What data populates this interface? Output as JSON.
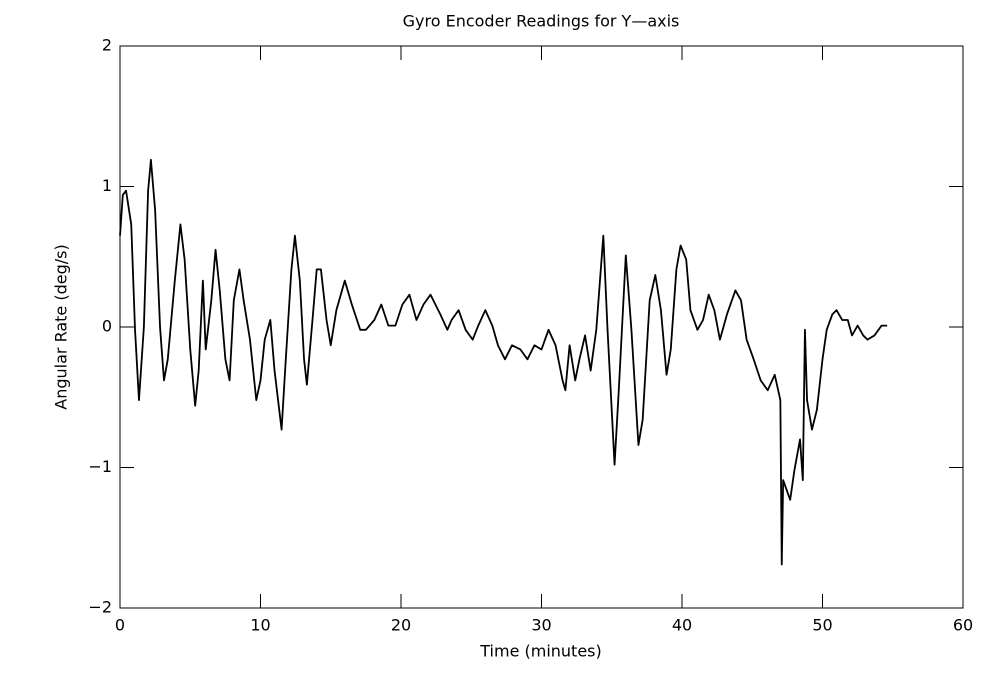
{
  "chart_data": {
    "type": "line",
    "title": "Gyro Encoder Readings for Y—axis",
    "x_label": "Time (minutes)",
    "y_label": "Angular Rate (deg/s)",
    "xlim": [
      0,
      60
    ],
    "xticks": [
      0,
      10,
      20,
      30,
      40,
      50,
      60
    ],
    "ylim": [
      -2,
      2
    ],
    "yticks": [
      {
        "value": -2,
        "label": "−2"
      },
      {
        "value": -1,
        "label": "−1"
      },
      0,
      1,
      2
    ],
    "grid": false,
    "series": [
      {
        "color": "#000000",
        "x": [
          0,
          0.2,
          0.43,
          0.8,
          1.07,
          1.35,
          1.7,
          2.0,
          2.2,
          2.5,
          2.85,
          3.13,
          3.4,
          3.9,
          4.3,
          4.6,
          5.0,
          5.35,
          5.6,
          5.9,
          6.1,
          6.5,
          6.8,
          7.1,
          7.5,
          7.8,
          8.1,
          8.5,
          8.8,
          9.25,
          9.7,
          10.0,
          10.3,
          10.7,
          11.0,
          11.5,
          11.8,
          12.2,
          12.45,
          12.8,
          13.1,
          13.3,
          13.7,
          14.0,
          14.3,
          14.7,
          15.0,
          15.4,
          16.0,
          16.5,
          17.1,
          17.5,
          18.1,
          18.6,
          19.1,
          19.6,
          20.1,
          20.6,
          21.1,
          21.6,
          22.1,
          22.8,
          23.3,
          23.6,
          24.1,
          24.6,
          25.1,
          25.5,
          26.0,
          26.5,
          26.9,
          27.4,
          27.9,
          28.5,
          29.0,
          29.5,
          30.0,
          30.5,
          31.0,
          31.5,
          31.7,
          32.0,
          32.4,
          32.7,
          33.1,
          33.5,
          33.9,
          34.4,
          34.7,
          35.2,
          35.5,
          36.0,
          36.4,
          36.9,
          37.2,
          37.7,
          38.1,
          38.5,
          38.9,
          39.2,
          39.6,
          39.9,
          40.3,
          40.6,
          41.1,
          41.5,
          41.9,
          42.3,
          42.7,
          43.2,
          43.8,
          44.2,
          44.6,
          45.1,
          45.6,
          46.1,
          46.6,
          47.0,
          47.1,
          47.2,
          47.7,
          48.0,
          48.4,
          48.6,
          48.75,
          48.9,
          49.25,
          49.6,
          50.0,
          50.3,
          50.7,
          51.0,
          51.4,
          51.8,
          52.1,
          52.5,
          52.9,
          53.2,
          53.7,
          54.2,
          54.6
        ],
        "values": [
          0.65,
          0.94,
          0.97,
          0.73,
          -0.02,
          -0.52,
          0,
          0.97,
          1.19,
          0.83,
          0,
          -0.38,
          -0.23,
          0.33,
          0.73,
          0.48,
          -0.16,
          -0.56,
          -0.31,
          0.33,
          -0.16,
          0.19,
          0.55,
          0.26,
          -0.23,
          -0.38,
          0.19,
          0.41,
          0.19,
          -0.09,
          -0.52,
          -0.38,
          -0.09,
          0.05,
          -0.31,
          -0.73,
          -0.23,
          0.41,
          0.65,
          0.33,
          -0.23,
          -0.41,
          0.05,
          0.41,
          0.41,
          0.05,
          -0.13,
          0.12,
          0.33,
          0.16,
          -0.02,
          -0.02,
          0.05,
          0.16,
          0.01,
          0.01,
          0.16,
          0.23,
          0.05,
          0.16,
          0.23,
          0.09,
          -0.02,
          0.05,
          0.12,
          -0.02,
          -0.09,
          0.01,
          0.12,
          0.01,
          -0.13,
          -0.23,
          -0.13,
          -0.16,
          -0.23,
          -0.13,
          -0.16,
          -0.02,
          -0.13,
          -0.38,
          -0.45,
          -0.13,
          -0.38,
          -0.23,
          -0.06,
          -0.31,
          -0.02,
          0.65,
          -0.02,
          -0.98,
          -0.45,
          0.51,
          -0.02,
          -0.84,
          -0.66,
          0.19,
          0.37,
          0.12,
          -0.34,
          -0.16,
          0.41,
          0.58,
          0.48,
          0.12,
          -0.02,
          0.05,
          0.23,
          0.12,
          -0.09,
          0.09,
          0.26,
          0.19,
          -0.09,
          -0.23,
          -0.38,
          -0.45,
          -0.34,
          -0.52,
          -1.69,
          -1.09,
          -1.23,
          -1.02,
          -0.8,
          -1.09,
          -0.02,
          -0.52,
          -0.73,
          -0.59,
          -0.23,
          -0.02,
          0.09,
          0.12,
          0.05,
          0.05,
          -0.06,
          0.01,
          -0.06,
          -0.09,
          -0.06,
          0.01,
          0.01
        ]
      }
    ]
  }
}
